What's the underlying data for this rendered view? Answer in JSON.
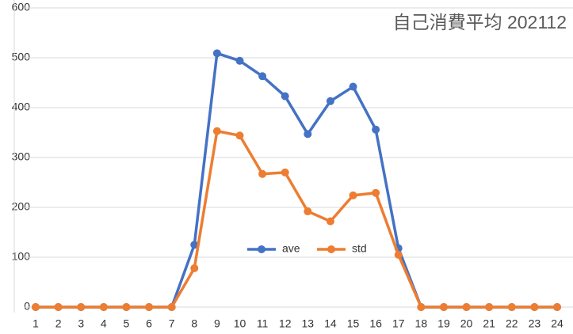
{
  "chart_data": {
    "type": "line",
    "title": "自己消費平均  202112",
    "categories": [
      "1",
      "2",
      "3",
      "4",
      "5",
      "6",
      "7",
      "8",
      "9",
      "10",
      "11",
      "12",
      "13",
      "14",
      "15",
      "16",
      "17",
      "18",
      "19",
      "20",
      "21",
      "22",
      "23",
      "24"
    ],
    "series": [
      {
        "name": "ave",
        "color": "#4472c4",
        "values": [
          0,
          0,
          0,
          0,
          0,
          0,
          0,
          125,
          509,
          494,
          463,
          423,
          347,
          413,
          442,
          356,
          118,
          0,
          0,
          0,
          0,
          0,
          0,
          0
        ]
      },
      {
        "name": "std",
        "color": "#ed7d31",
        "values": [
          0,
          0,
          0,
          0,
          0,
          0,
          0,
          78,
          353,
          344,
          267,
          270,
          192,
          172,
          224,
          229,
          105,
          0,
          0,
          0,
          0,
          0,
          0,
          0
        ]
      }
    ],
    "ylim": [
      0,
      600
    ],
    "yticks": [
      0,
      100,
      200,
      300,
      400,
      500,
      600
    ],
    "grid": true
  }
}
